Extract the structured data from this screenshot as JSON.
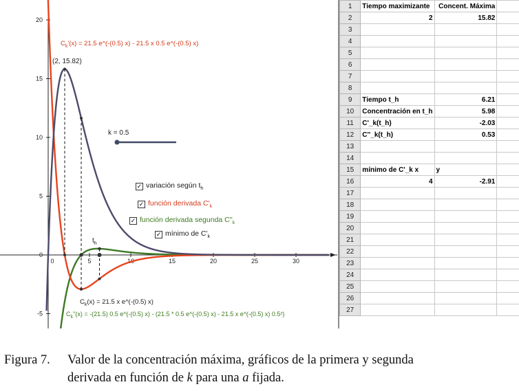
{
  "graph": {
    "y_ticks": [
      "20",
      "15",
      "10",
      "5",
      "0",
      "-5"
    ],
    "x_ticks": [
      "0",
      "5",
      "10",
      "15",
      "20",
      "25",
      "30"
    ],
    "max_point_label": "(2, 15.82)",
    "th_label": "t",
    "th_sub": "h",
    "slider_label": "k = 0.5",
    "formula_deriv_top_pre": "C",
    "formula_deriv_top_sub": "k",
    "formula_deriv_top": "'(x) = 21.5 e^(-(0.5) x) - 21.5 x 0.5 e^(-(0.5) x)",
    "formula_ck_pre": "C",
    "formula_ck_sub": "k",
    "formula_ck": "(x) = 21.5 x e^(-(0.5) x)",
    "formula_second_pre": "C",
    "formula_second_sub": "k",
    "formula_second": "''(x) = -(21.5) 0.5 e^(-(0.5) x) - (21.5 * 0.5 e^(-(0.5) x) - 21.5 x e^(-(0.5) x) 0.5²)",
    "checkboxes": [
      {
        "pre": "variación según t",
        "sub": "h",
        "post": "",
        "color": "#1a1a1a",
        "checked": "✓"
      },
      {
        "pre": "función derivada C'",
        "sub": "k",
        "post": "",
        "color": "#d33a1a",
        "checked": "✓"
      },
      {
        "pre": "función derivada segunda C''",
        "sub": "k",
        "post": "",
        "color": "#3d7a1f",
        "checked": "✓"
      },
      {
        "pre": "mínimo de C'",
        "sub": "k",
        "post": "",
        "color": "#1a1a1a",
        "checked": "✓"
      }
    ],
    "colors": {
      "concentration": "#4b4b6a",
      "first_derivative": "#e8431c",
      "second_derivative": "#3c7a24",
      "slider": "#3f4a66"
    },
    "parameters": {
      "a": 21.5,
      "k": 0.5
    }
  },
  "spreadsheet": {
    "rows": [
      [
        "1",
        "Tiempo maximizante",
        "Concent. Máxima",
        ""
      ],
      [
        "2",
        "2",
        "15.82",
        ""
      ],
      [
        "3",
        "",
        "",
        ""
      ],
      [
        "4",
        "",
        "",
        ""
      ],
      [
        "5",
        "",
        "",
        ""
      ],
      [
        "6",
        "",
        "",
        ""
      ],
      [
        "7",
        "",
        "",
        ""
      ],
      [
        "8",
        "",
        "",
        ""
      ],
      [
        "9",
        "Tiempo t_h",
        "6.21",
        ""
      ],
      [
        "10",
        "Concentración en t_h",
        "5.98",
        ""
      ],
      [
        "11",
        "C'_k(t_h)",
        "-2.03",
        ""
      ],
      [
        "12",
        "C''_k(t_h)",
        "0.53",
        ""
      ],
      [
        "13",
        "",
        "",
        ""
      ],
      [
        "14",
        "",
        "",
        ""
      ],
      [
        "15",
        "mínimo de C'_k      x",
        "y",
        ""
      ],
      [
        "16",
        "4",
        "-2.91",
        ""
      ],
      [
        "17",
        "",
        "",
        ""
      ],
      [
        "18",
        "",
        "",
        ""
      ],
      [
        "19",
        "",
        "",
        ""
      ],
      [
        "20",
        "",
        "",
        ""
      ],
      [
        "21",
        "",
        "",
        ""
      ],
      [
        "22",
        "",
        "",
        ""
      ],
      [
        "23",
        "",
        "",
        ""
      ],
      [
        "24",
        "",
        "",
        ""
      ],
      [
        "25",
        "",
        "",
        ""
      ],
      [
        "26",
        "",
        "",
        ""
      ],
      [
        "27",
        "",
        "",
        ""
      ]
    ]
  },
  "caption": {
    "number": "Figura 7.",
    "line1": "Valor de la concentración máxima, gráficos de la primera y segunda",
    "line2_a": "derivada en función de ",
    "line2_k": "k",
    "line2_b": " para una ",
    "line2_a_var": "a",
    "line2_c": " fijada."
  }
}
